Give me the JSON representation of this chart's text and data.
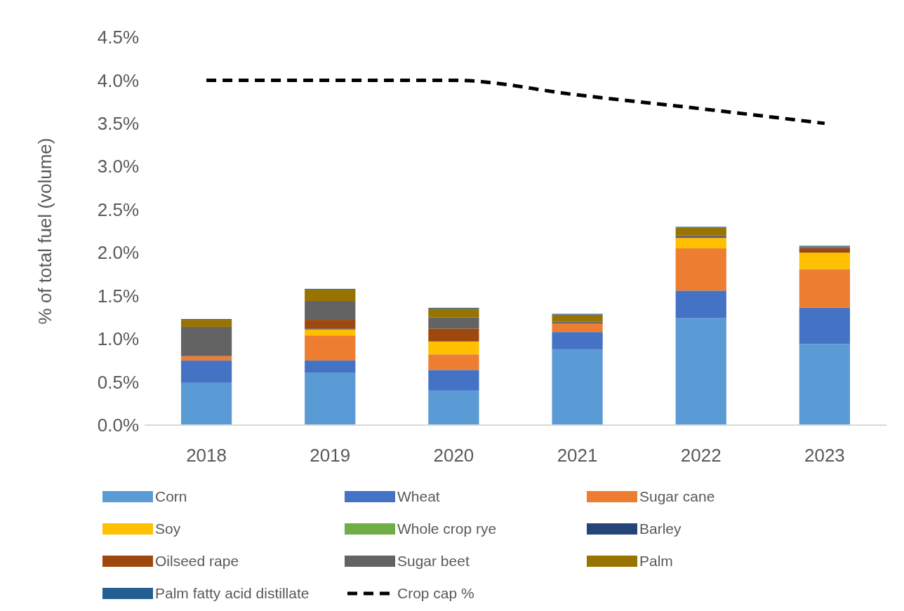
{
  "chart_data": {
    "type": "bar",
    "stacked": true,
    "ylabel": "% of total fuel (volume)",
    "categories": [
      "2018",
      "2019",
      "2020",
      "2021",
      "2022",
      "2023"
    ],
    "ylim": [
      0,
      4.5
    ],
    "yticks": [
      {
        "value": 0,
        "label": "0.0%"
      },
      {
        "value": 0.5,
        "label": "0.5%"
      },
      {
        "value": 1,
        "label": "1.0%"
      },
      {
        "value": 1.5,
        "label": "1.5%"
      },
      {
        "value": 2,
        "label": "2.0%"
      },
      {
        "value": 2.5,
        "label": "2.5%"
      },
      {
        "value": 3,
        "label": "3.0%"
      },
      {
        "value": 3.5,
        "label": "3.5%"
      },
      {
        "value": 4,
        "label": "4.0%"
      },
      {
        "value": 4.5,
        "label": "4.5%"
      }
    ],
    "grid": false,
    "legend": "bottom",
    "series": [
      {
        "name": "Corn",
        "color": "#5b9bd5",
        "values": [
          0.49,
          0.61,
          0.4,
          0.88,
          1.24,
          0.94
        ]
      },
      {
        "name": "Wheat",
        "color": "#4472c4",
        "values": [
          0.26,
          0.14,
          0.24,
          0.2,
          0.32,
          0.42
        ]
      },
      {
        "name": "Sugar cane",
        "color": "#ed7d31",
        "values": [
          0.05,
          0.29,
          0.18,
          0.1,
          0.49,
          0.45
        ]
      },
      {
        "name": "Soy",
        "color": "#ffc000",
        "values": [
          0,
          0.07,
          0.15,
          0,
          0.12,
          0.19
        ]
      },
      {
        "name": "Whole crop rye",
        "color": "#70ad47",
        "values": [
          0,
          0,
          0,
          0,
          0,
          0
        ]
      },
      {
        "name": "Barley",
        "color": "#264478",
        "values": [
          0,
          0.01,
          0,
          0,
          0,
          0
        ]
      },
      {
        "name": "Oilseed rape",
        "color": "#9e480e",
        "values": [
          0,
          0.1,
          0.15,
          0,
          0.01,
          0.05
        ]
      },
      {
        "name": "Sugar beet",
        "color": "#636363",
        "values": [
          0.34,
          0.22,
          0.13,
          0.02,
          0.02,
          0.01
        ]
      },
      {
        "name": "Palm",
        "color": "#997300",
        "values": [
          0.08,
          0.13,
          0.1,
          0.08,
          0.09,
          0.01
        ]
      },
      {
        "name": "Palm fatty acid distillate",
        "color": "#255e91",
        "values": [
          0.01,
          0.01,
          0.01,
          0.01,
          0.01,
          0.01
        ]
      },
      {
        "name": "Crop cap %",
        "type": "line",
        "color": "#000000",
        "line_style": "dashed",
        "marker": "none",
        "values": [
          4.0,
          4.0,
          4.0,
          3.83,
          3.67,
          3.5
        ]
      }
    ]
  }
}
